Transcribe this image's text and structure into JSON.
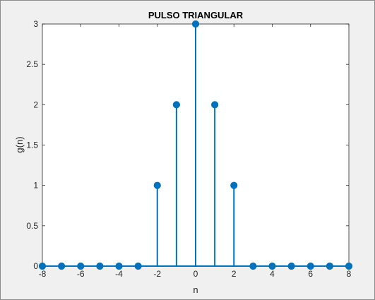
{
  "chart_data": {
    "type": "stem",
    "title": "PULSO TRIANGULAR",
    "xlabel": "n",
    "ylabel": "g(n)",
    "xlim": [
      -8,
      8
    ],
    "ylim": [
      0,
      3
    ],
    "x_ticks": [
      -8,
      -6,
      -4,
      -2,
      0,
      2,
      4,
      6,
      8
    ],
    "y_ticks": [
      0,
      0.5,
      1,
      1.5,
      2,
      2.5,
      3
    ],
    "x": [
      -8,
      -7,
      -6,
      -5,
      -4,
      -3,
      -2,
      -1,
      0,
      1,
      2,
      3,
      4,
      5,
      6,
      7,
      8
    ],
    "values": [
      0,
      0,
      0,
      0,
      0,
      0,
      1,
      2,
      3,
      2,
      1,
      0,
      0,
      0,
      0,
      0,
      0
    ],
    "grid": false,
    "series_color": "#0072BD",
    "axes_color": "#262626",
    "plot_background": "#ffffff",
    "figure_background": "#f0f0f0"
  }
}
